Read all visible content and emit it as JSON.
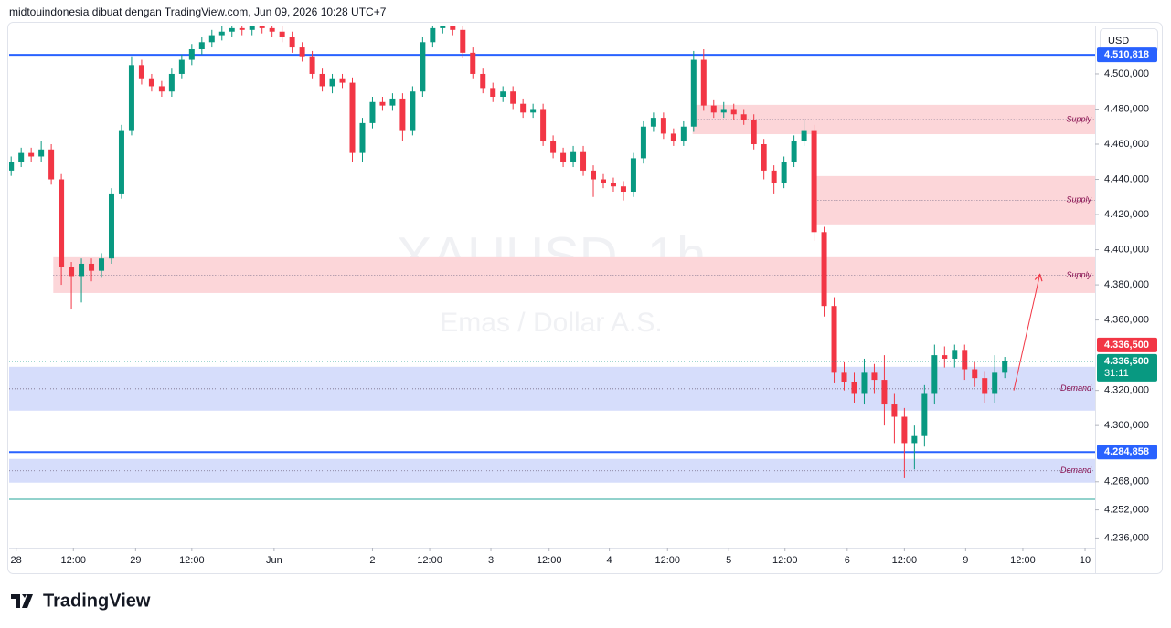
{
  "chart_data": {
    "type": "candlestick",
    "header": "midtouindonesia dibuat dengan TradingView.com, Jun 09, 2026 10:28 UTC+7",
    "watermark": "XAUUSD, 1h",
    "watermark_subtitle": "Emas / Dollar A.S.",
    "currency": "USD",
    "brand": "TradingView",
    "up_color": "#089981",
    "down_color": "#f23645",
    "xlim": [
      -0.2,
      108
    ],
    "xticks": [
      {
        "value": 0.5,
        "label": "28"
      },
      {
        "value": 6.2,
        "label": "12:00"
      },
      {
        "value": 12.4,
        "label": "29"
      },
      {
        "value": 18,
        "label": "12:00"
      },
      {
        "value": 26.2,
        "label": "Jun"
      },
      {
        "value": 36,
        "label": "2"
      },
      {
        "value": 41.7,
        "label": "12:00"
      },
      {
        "value": 47.8,
        "label": "3"
      },
      {
        "value": 53.6,
        "label": "12:00"
      },
      {
        "value": 59.6,
        "label": "4"
      },
      {
        "value": 65.4,
        "label": "12:00"
      },
      {
        "value": 71.5,
        "label": "5"
      },
      {
        "value": 77.1,
        "label": "12:00"
      },
      {
        "value": 83.3,
        "label": "6"
      },
      {
        "value": 89,
        "label": "12:00"
      },
      {
        "value": 95.1,
        "label": "9"
      },
      {
        "value": 100.8,
        "label": "12:00"
      },
      {
        "value": 107,
        "label": "10"
      }
    ],
    "ylim": [
      4230.5,
      4527.5
    ],
    "yticks": [
      {
        "value": 4500,
        "label": "4.500,000"
      },
      {
        "value": 4480,
        "label": "4.480,000"
      },
      {
        "value": 4460,
        "label": "4.460,000"
      },
      {
        "value": 4440,
        "label": "4.440,000"
      },
      {
        "value": 4420,
        "label": "4.420,000"
      },
      {
        "value": 4400,
        "label": "4.400,000"
      },
      {
        "value": 4380,
        "label": "4.380,000"
      },
      {
        "value": 4360,
        "label": "4.360,000"
      },
      {
        "value": 4320,
        "label": "4.320,000"
      },
      {
        "value": 4300,
        "label": "4.300,000"
      },
      {
        "value": 4268,
        "label": "4.268,000"
      },
      {
        "value": 4252,
        "label": "4.252,000"
      },
      {
        "value": 4236,
        "label": "4.236,000"
      }
    ],
    "open": [
      4445,
      4450,
      4455,
      4453,
      4457,
      4440,
      4390,
      4385,
      4392,
      4388,
      4395,
      4432,
      4468,
      4505,
      4497,
      4493,
      4490,
      4500,
      4508,
      4514,
      4518,
      4522,
      4524,
      4526,
      4525,
      4527,
      4526,
      4524,
      4521,
      4515,
      4510,
      4500,
      4493,
      4497,
      4495,
      4455,
      4472,
      4484,
      4482,
      4486,
      4468,
      4490,
      4518,
      4526,
      4527,
      4525,
      4512,
      4500,
      4492,
      4487,
      4490,
      4483,
      4478,
      4480,
      4462,
      4455,
      4450,
      4456,
      4445,
      4440,
      4438,
      4436,
      4433,
      4452,
      4470,
      4475,
      4466,
      4462,
      4470,
      4508,
      4482,
      4478,
      4480,
      4477,
      4474,
      4460,
      4445,
      4438,
      4450,
      4462,
      4468,
      4410,
      4368,
      4330,
      4325,
      4318,
      4330,
      4326,
      4312,
      4305,
      4290,
      4294,
      4318,
      4340,
      4338,
      4343,
      4332,
      4327,
      4318,
      4330
    ],
    "high": [
      4453,
      4458,
      4458,
      4462,
      4460,
      4443,
      4393,
      4395,
      4395,
      4398,
      4435,
      4471,
      4510,
      4508,
      4500,
      4496,
      4503,
      4511,
      4517,
      4521,
      4525,
      4527,
      4529,
      4529,
      4530,
      4530,
      4529,
      4527,
      4524,
      4518,
      4513,
      4503,
      4500,
      4500,
      4498,
      4475,
      4487,
      4487,
      4489,
      4489,
      4493,
      4521,
      4529,
      4530,
      4530,
      4528,
      4515,
      4503,
      4495,
      4493,
      4493,
      4486,
      4483,
      4483,
      4465,
      4458,
      4459,
      4459,
      4448,
      4443,
      4441,
      4439,
      4455,
      4473,
      4478,
      4478,
      4469,
      4473,
      4513,
      4514,
      4485,
      4484,
      4483,
      4480,
      4477,
      4463,
      4448,
      4453,
      4465,
      4474,
      4471,
      4413,
      4373,
      4336,
      4330,
      4338,
      4335,
      4340,
      4318,
      4310,
      4300,
      4323,
      4346,
      4345,
      4346,
      4346,
      4336,
      4331,
      4340,
      4339
    ],
    "low": [
      4442,
      4447,
      4450,
      4450,
      4437,
      4380,
      4366,
      4370,
      4382,
      4384,
      4392,
      4429,
      4465,
      4494,
      4490,
      4487,
      4487,
      4497,
      4505,
      4511,
      4515,
      4519,
      4521,
      4522,
      4522,
      4523,
      4521,
      4518,
      4512,
      4507,
      4497,
      4490,
      4489,
      4492,
      4450,
      4450,
      4469,
      4479,
      4479,
      4462,
      4465,
      4487,
      4515,
      4523,
      4522,
      4509,
      4497,
      4489,
      4484,
      4484,
      4480,
      4475,
      4475,
      4459,
      4452,
      4447,
      4447,
      4442,
      4430,
      4435,
      4433,
      4428,
      4430,
      4449,
      4467,
      4463,
      4459,
      4459,
      4467,
      4479,
      4475,
      4475,
      4474,
      4471,
      4457,
      4440,
      4432,
      4435,
      4447,
      4459,
      4405,
      4362,
      4324,
      4320,
      4313,
      4312,
      4318,
      4300,
      4290,
      4270,
      4275,
      4288,
      4312,
      4333,
      4333,
      4326,
      4322,
      4313,
      4313,
      4327
    ],
    "close": [
      4450,
      4455,
      4453,
      4457,
      4440,
      4390,
      4385,
      4392,
      4388,
      4395,
      4432,
      4468,
      4505,
      4497,
      4493,
      4490,
      4500,
      4508,
      4514,
      4518,
      4522,
      4524,
      4526,
      4525,
      4527,
      4526,
      4524,
      4521,
      4515,
      4510,
      4500,
      4493,
      4497,
      4495,
      4455,
      4472,
      4484,
      4482,
      4486,
      4468,
      4490,
      4518,
      4526,
      4527,
      4525,
      4512,
      4500,
      4492,
      4487,
      4490,
      4483,
      4478,
      4480,
      4462,
      4455,
      4450,
      4456,
      4445,
      4440,
      4438,
      4436,
      4433,
      4452,
      4470,
      4475,
      4466,
      4462,
      4470,
      4508,
      4482,
      4478,
      4480,
      4477,
      4474,
      4460,
      4445,
      4438,
      4450,
      4462,
      4468,
      4410,
      4368,
      4330,
      4325,
      4318,
      4330,
      4326,
      4312,
      4305,
      4290,
      4294,
      4318,
      4340,
      4338,
      4343,
      4332,
      4327,
      4318,
      4330,
      4336.5
    ],
    "zones": [
      {
        "label": "Supply",
        "top": 4482.4,
        "bottom": 4465.7,
        "start": 67.9,
        "color": "#fcd6d9"
      },
      {
        "label": "Supply",
        "top": 4441.9,
        "bottom": 4414.4,
        "start": 79.8,
        "color": "#fcd6d9"
      },
      {
        "label": "Supply",
        "top": 4395.7,
        "bottom": 4375.4,
        "start": 4.2,
        "color": "#fcd6d9"
      },
      {
        "label": "Demand",
        "top": 4333.4,
        "bottom": 4308.5,
        "start": -0.2,
        "color": "#d6ddfb"
      },
      {
        "label": "Demand",
        "top": 4281,
        "bottom": 4267.5,
        "start": -0.2,
        "color": "#d6ddfb"
      }
    ],
    "levels": [
      {
        "value": 4510.818,
        "label": "4.510,818",
        "color": "#2962ff"
      },
      {
        "value": 4284.858,
        "label": "4.284,858",
        "color": "#2962ff"
      },
      {
        "value": 4258,
        "color": "#26a69a"
      }
    ],
    "arrow": {
      "x": [
        99.9,
        102.5
      ],
      "y": [
        4320,
        4386
      ],
      "color": "#f23645"
    },
    "last_price": {
      "value": 4336.5,
      "label": "4.336,500",
      "countdown": "31:11"
    }
  }
}
